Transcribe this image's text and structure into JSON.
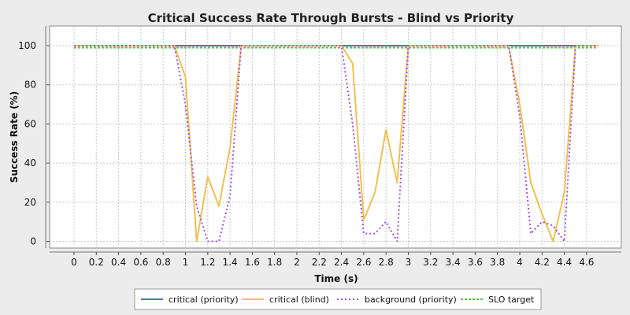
{
  "chart_data": {
    "type": "line",
    "title": "Critical Success Rate Through Bursts - Blind vs Priority",
    "xlabel": "Time (s)",
    "ylabel": "Success Rate (%)",
    "xlim": [
      -0.2,
      4.9
    ],
    "ylim": [
      -5,
      110
    ],
    "xticks": [
      "0",
      "0.2",
      "0.4",
      "0.6",
      "0.8",
      "1",
      "1.2",
      "1.4",
      "1.6",
      "1.8",
      "2",
      "2.2",
      "2.4",
      "2.6",
      "2.8",
      "3",
      "3.2",
      "3.4",
      "3.6",
      "3.8",
      "4",
      "4.2",
      "4.4",
      "4.6"
    ],
    "yticks": [
      "0",
      "20",
      "40",
      "60",
      "80",
      "100"
    ],
    "grid": true,
    "legend_position": "bottom",
    "series": [
      {
        "name": "critical (priority)",
        "color": "#4a72d6",
        "style": "solid",
        "x": [
          0,
          4.7
        ],
        "y": [
          100,
          100
        ]
      },
      {
        "name": "critical (blind)",
        "color": "#f2c04e",
        "style": "solid",
        "x": [
          0,
          0.9,
          1.0,
          1.1,
          1.2,
          1.3,
          1.4,
          1.5,
          2.4,
          2.5,
          2.6,
          2.7,
          2.8,
          2.9,
          3.0,
          3.9,
          4.0,
          4.1,
          4.2,
          4.3,
          4.4,
          4.5,
          4.7
        ],
        "y": [
          100,
          100,
          84,
          0,
          33,
          18,
          48,
          100,
          100,
          91,
          11,
          25,
          57,
          30,
          100,
          100,
          70,
          30,
          14,
          0,
          25,
          100,
          100
        ]
      },
      {
        "name": "background (priority)",
        "color": "#a64fe0",
        "style": "dotted",
        "x": [
          0,
          0.9,
          1.0,
          1.1,
          1.2,
          1.3,
          1.4,
          1.5,
          2.4,
          2.5,
          2.6,
          2.7,
          2.8,
          2.9,
          3.0,
          3.9,
          4.0,
          4.1,
          4.2,
          4.3,
          4.4,
          4.5,
          4.7
        ],
        "y": [
          100,
          100,
          70,
          18,
          0,
          0,
          23,
          100,
          100,
          60,
          4,
          4,
          10,
          0,
          100,
          100,
          64,
          4,
          10,
          8,
          0,
          100,
          100
        ]
      },
      {
        "name": "SLO target",
        "color": "#52c34a",
        "style": "dashed",
        "x": [
          0,
          4.7
        ],
        "y": [
          99,
          99
        ]
      }
    ]
  }
}
